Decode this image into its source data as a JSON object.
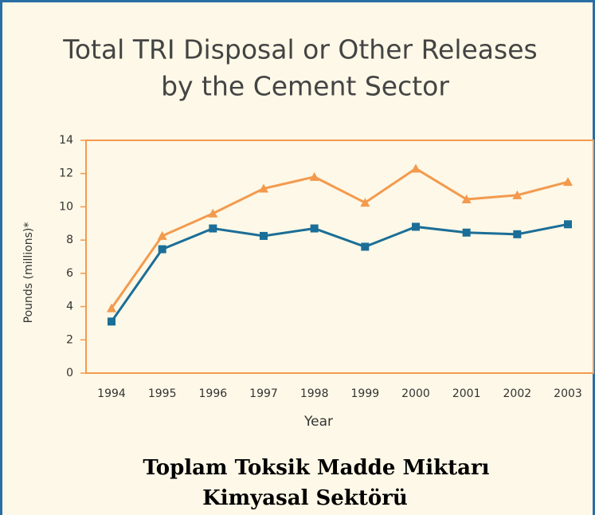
{
  "chart_data": {
    "type": "line",
    "title": [
      "Total TRI Disposal or Other Releases",
      "by the Cement Sector"
    ],
    "ylabel": "Pounds (millions)*",
    "xlabel": "Year",
    "categories": [
      "1994",
      "1995",
      "1996",
      "1997",
      "1998",
      "1999",
      "2000",
      "2001",
      "2002",
      "2003"
    ],
    "series": [
      {
        "color": "#f39a4e",
        "marker": "triangle",
        "values": [
          3.9,
          8.25,
          9.6,
          11.1,
          11.8,
          10.25,
          12.3,
          10.45,
          10.7,
          11.5
        ]
      },
      {
        "color": "#1b6e97",
        "marker": "square",
        "values": [
          3.1,
          7.45,
          8.7,
          8.25,
          8.7,
          7.6,
          8.8,
          8.45,
          8.35,
          8.95
        ]
      }
    ],
    "ylim": [
      0,
      14
    ],
    "yticks": [
      0,
      2,
      4,
      6,
      8,
      10,
      12,
      14
    ]
  },
  "caption": [
    "Toplam Toksik Madde Miktarı",
    "Kimyasal Sektörü"
  ]
}
